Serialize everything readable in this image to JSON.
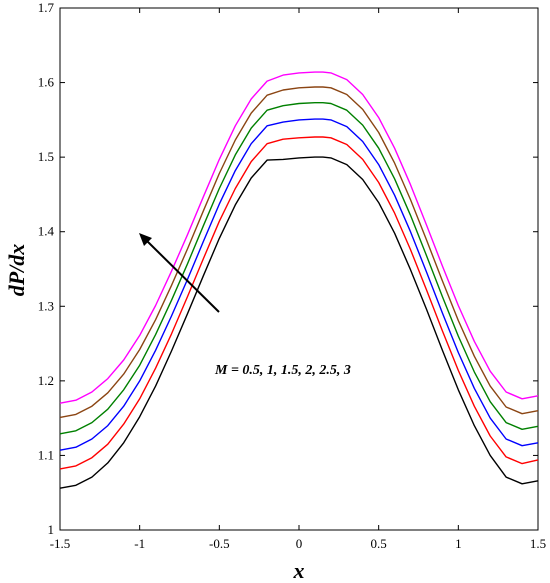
{
  "chart_data": {
    "type": "line",
    "xlabel": "x",
    "ylabel": "dP/dx",
    "xlim": [
      -1.5,
      1.5
    ],
    "ylim": [
      1.0,
      1.7
    ],
    "xticks": [
      "-1.5",
      "-1",
      "-0.5",
      "0",
      "0.5",
      "1",
      "1.5"
    ],
    "yticks": [
      "1",
      "1.1",
      "1.2",
      "1.3",
      "1.4",
      "1.5",
      "1.6",
      "1.7"
    ],
    "annotation": "M = 0.5, 1, 1.5, 2, 2.5, 3",
    "grid": false,
    "x": [
      -1.5,
      -1.4,
      -1.3,
      -1.2,
      -1.1,
      -1.0,
      -0.9,
      -0.8,
      -0.7,
      -0.6,
      -0.5,
      -0.4,
      -0.3,
      -0.2,
      -0.1,
      0.0,
      0.1,
      0.15,
      0.2,
      0.3,
      0.4,
      0.5,
      0.6,
      0.7,
      0.8,
      0.9,
      1.0,
      1.1,
      1.2,
      1.3,
      1.4,
      1.5
    ],
    "series": [
      {
        "color": "#000000",
        "values": [
          1.056,
          1.06,
          1.071,
          1.09,
          1.117,
          1.152,
          1.193,
          1.24,
          1.29,
          1.341,
          1.391,
          1.436,
          1.472,
          1.496,
          1.497,
          1.499,
          1.5,
          1.5,
          1.499,
          1.49,
          1.47,
          1.439,
          1.398,
          1.349,
          1.296,
          1.241,
          1.188,
          1.14,
          1.1,
          1.071,
          1.062,
          1.066
        ]
      },
      {
        "color": "#ff0000",
        "values": [
          1.082,
          1.086,
          1.097,
          1.115,
          1.142,
          1.176,
          1.217,
          1.263,
          1.313,
          1.364,
          1.414,
          1.458,
          1.494,
          1.518,
          1.524,
          1.526,
          1.527,
          1.527,
          1.526,
          1.517,
          1.497,
          1.466,
          1.425,
          1.376,
          1.322,
          1.267,
          1.214,
          1.166,
          1.126,
          1.098,
          1.089,
          1.094
        ]
      },
      {
        "color": "#0000ff",
        "values": [
          1.107,
          1.111,
          1.122,
          1.14,
          1.166,
          1.2,
          1.241,
          1.287,
          1.336,
          1.387,
          1.437,
          1.482,
          1.518,
          1.542,
          1.547,
          1.55,
          1.551,
          1.551,
          1.55,
          1.541,
          1.521,
          1.49,
          1.449,
          1.4,
          1.346,
          1.291,
          1.238,
          1.19,
          1.15,
          1.122,
          1.113,
          1.117
        ]
      },
      {
        "color": "#008000",
        "values": [
          1.129,
          1.133,
          1.144,
          1.162,
          1.188,
          1.221,
          1.262,
          1.308,
          1.357,
          1.408,
          1.458,
          1.503,
          1.539,
          1.563,
          1.569,
          1.572,
          1.573,
          1.573,
          1.572,
          1.563,
          1.543,
          1.512,
          1.471,
          1.422,
          1.368,
          1.313,
          1.26,
          1.212,
          1.172,
          1.144,
          1.135,
          1.139
        ]
      },
      {
        "color": "#8b4513",
        "values": [
          1.151,
          1.155,
          1.166,
          1.184,
          1.209,
          1.242,
          1.282,
          1.328,
          1.377,
          1.428,
          1.478,
          1.523,
          1.559,
          1.583,
          1.59,
          1.593,
          1.594,
          1.594,
          1.593,
          1.584,
          1.564,
          1.533,
          1.492,
          1.443,
          1.389,
          1.334,
          1.281,
          1.233,
          1.193,
          1.165,
          1.156,
          1.16
        ]
      },
      {
        "color": "#ff00ff",
        "values": [
          1.17,
          1.174,
          1.185,
          1.203,
          1.228,
          1.261,
          1.301,
          1.347,
          1.396,
          1.447,
          1.497,
          1.542,
          1.578,
          1.602,
          1.61,
          1.613,
          1.614,
          1.614,
          1.613,
          1.604,
          1.584,
          1.553,
          1.512,
          1.463,
          1.409,
          1.354,
          1.301,
          1.253,
          1.213,
          1.185,
          1.176,
          1.18
        ]
      }
    ]
  }
}
